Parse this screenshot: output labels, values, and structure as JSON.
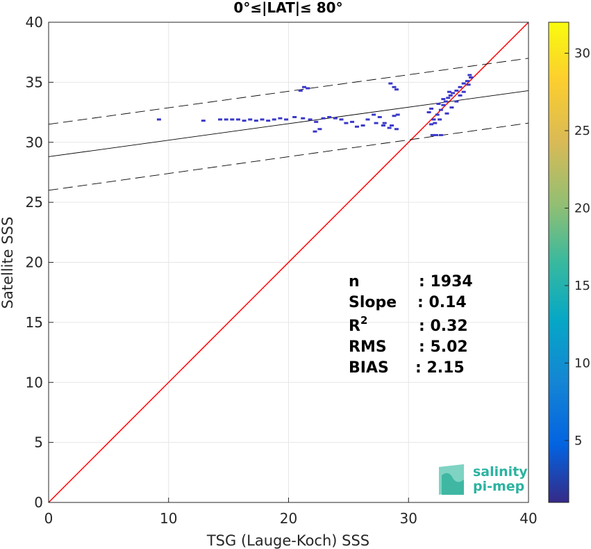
{
  "chart_data": {
    "type": "scatter",
    "title": "0°≤|LAT|≤ 80°",
    "xlabel": "TSG (Lauge-Koch) SSS",
    "ylabel": "Satellite SSS",
    "xlim": [
      0,
      40
    ],
    "ylim": [
      0,
      40
    ],
    "xticks": [
      "0",
      "10",
      "20",
      "30",
      "40"
    ],
    "yticks": [
      "0",
      "5",
      "10",
      "15",
      "20",
      "25",
      "30",
      "35",
      "40"
    ],
    "grid": true,
    "colorbar": {
      "range": [
        1,
        32
      ],
      "ticks": [
        "5",
        "10",
        "15",
        "20",
        "25",
        "30"
      ],
      "colormap": "parula"
    },
    "lines": [
      {
        "kind": "identity",
        "color": "#ff0000",
        "x": [
          0,
          40
        ],
        "y": [
          0,
          40
        ]
      },
      {
        "kind": "regression",
        "color": "#000000",
        "style": "solid",
        "x": [
          0,
          40
        ],
        "y": [
          28.8,
          34.3
        ]
      },
      {
        "kind": "regression-upper",
        "color": "#000000",
        "style": "dashed",
        "x": [
          0,
          40
        ],
        "y": [
          31.5,
          37.0
        ]
      },
      {
        "kind": "regression-lower",
        "color": "#000000",
        "style": "dashed",
        "x": [
          0,
          40
        ],
        "y": [
          26.0,
          31.6
        ]
      }
    ],
    "points": [
      [
        9.2,
        31.9
      ],
      [
        12.9,
        31.8
      ],
      [
        14.3,
        31.9
      ],
      [
        14.8,
        31.9
      ],
      [
        15.3,
        31.9
      ],
      [
        15.8,
        31.9
      ],
      [
        16.3,
        31.8
      ],
      [
        16.8,
        31.9
      ],
      [
        17.3,
        31.8
      ],
      [
        17.8,
        31.9
      ],
      [
        18.3,
        31.8
      ],
      [
        18.8,
        31.9
      ],
      [
        19.3,
        32.0
      ],
      [
        19.8,
        31.9
      ],
      [
        20.5,
        32.1
      ],
      [
        21.0,
        34.3
      ],
      [
        21.3,
        34.6
      ],
      [
        21.6,
        34.5
      ],
      [
        21.2,
        32.0
      ],
      [
        21.8,
        31.9
      ],
      [
        22.3,
        31.7
      ],
      [
        22.6,
        31.1
      ],
      [
        22.2,
        30.9
      ],
      [
        22.9,
        32.0
      ],
      [
        23.4,
        32.1
      ],
      [
        23.9,
        32.0
      ],
      [
        24.4,
        31.9
      ],
      [
        24.8,
        31.6
      ],
      [
        25.3,
        31.7
      ],
      [
        25.7,
        31.3
      ],
      [
        26.2,
        31.4
      ],
      [
        26.6,
        31.9
      ],
      [
        27.1,
        32.3
      ],
      [
        27.6,
        32.1
      ],
      [
        28.0,
        31.6
      ],
      [
        28.4,
        31.2
      ],
      [
        28.8,
        32.2
      ],
      [
        29.1,
        32.3
      ],
      [
        27.3,
        31.6
      ],
      [
        27.9,
        31.4
      ],
      [
        28.6,
        31.4
      ],
      [
        29.0,
        31.1
      ],
      [
        28.5,
        34.9
      ],
      [
        28.8,
        34.6
      ],
      [
        29.0,
        34.4
      ],
      [
        31.7,
        32.5
      ],
      [
        31.9,
        32.8
      ],
      [
        32.1,
        31.9
      ],
      [
        32.4,
        32.3
      ],
      [
        32.7,
        32.7
      ],
      [
        32.9,
        33.1
      ],
      [
        33.1,
        33.4
      ],
      [
        33.3,
        33.7
      ],
      [
        33.5,
        33.9
      ],
      [
        33.7,
        34.1
      ],
      [
        34.0,
        34.3
      ],
      [
        34.3,
        34.6
      ],
      [
        34.6,
        34.9
      ],
      [
        34.9,
        35.1
      ],
      [
        35.2,
        35.4
      ],
      [
        35.0,
        34.8
      ],
      [
        32.0,
        30.6
      ],
      [
        32.3,
        30.6
      ],
      [
        32.7,
        30.6
      ],
      [
        33.2,
        32.4
      ],
      [
        33.6,
        32.9
      ],
      [
        34.0,
        33.4
      ],
      [
        34.3,
        33.9
      ],
      [
        32.5,
        33.2
      ],
      [
        32.9,
        33.6
      ],
      [
        33.4,
        34.2
      ],
      [
        32.2,
        31.6
      ],
      [
        32.6,
        31.9
      ],
      [
        31.9,
        31.5
      ],
      [
        34.6,
        34.2
      ],
      [
        35.1,
        35.6
      ]
    ],
    "stats": [
      {
        "label": "n",
        "value": ": 1934"
      },
      {
        "label": "Slope",
        "value": ": 0.14"
      },
      {
        "label": "R",
        "sup": "2",
        "value": ": 0.32"
      },
      {
        "label": "RMS",
        "value": ": 5.02"
      },
      {
        "label": "BIAS",
        "value": ": 2.15"
      }
    ]
  },
  "logo": {
    "line1": "salinity",
    "line2": "pi-mep"
  }
}
